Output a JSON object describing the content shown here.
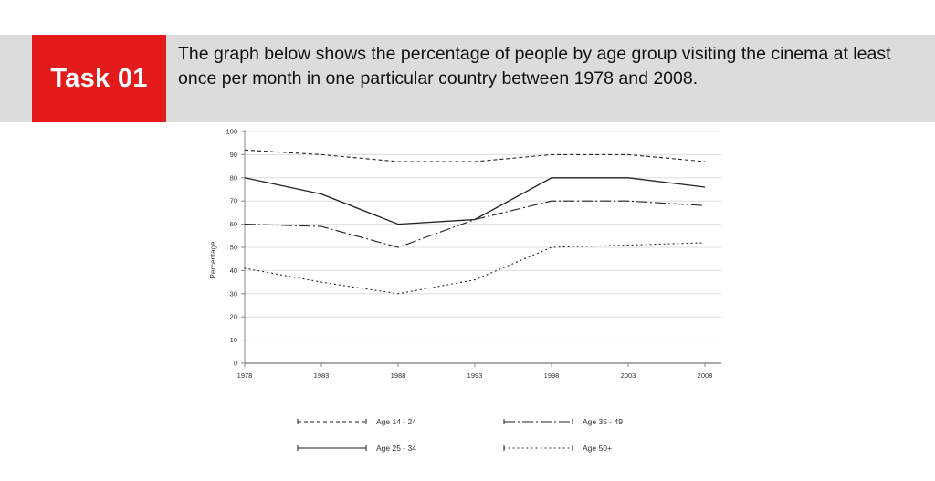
{
  "header": {
    "task_label": "Task 01",
    "description": "The graph below shows the percentage of people by age group visiting the cinema at least once per month in one particular country between 1978 and 2008.",
    "accent_color": "#e31b1b",
    "banner_color": "#dcdcdc"
  },
  "chart_data": {
    "type": "line",
    "title": "",
    "xlabel": "",
    "ylabel": "Percentage",
    "x": [
      1978,
      1983,
      1988,
      1993,
      1998,
      2003,
      2008
    ],
    "ylim": [
      0,
      100
    ],
    "yticks": [
      0,
      10,
      20,
      30,
      40,
      50,
      60,
      70,
      80,
      90,
      100
    ],
    "grid": true,
    "legend_position": "bottom",
    "series": [
      {
        "name": "Age 14 - 24",
        "style": "dashed",
        "values": [
          92,
          90,
          87,
          87,
          90,
          90,
          87
        ]
      },
      {
        "name": "Age 25 - 34",
        "style": "solid",
        "values": [
          80,
          73,
          60,
          62,
          80,
          80,
          76
        ]
      },
      {
        "name": "Age 35 - 49",
        "style": "dash-dot",
        "values": [
          60,
          59,
          50,
          62,
          70,
          70,
          68
        ]
      },
      {
        "name": "Age 50+",
        "style": "dotted",
        "values": [
          41,
          35,
          30,
          36,
          50,
          51,
          52
        ]
      }
    ]
  }
}
